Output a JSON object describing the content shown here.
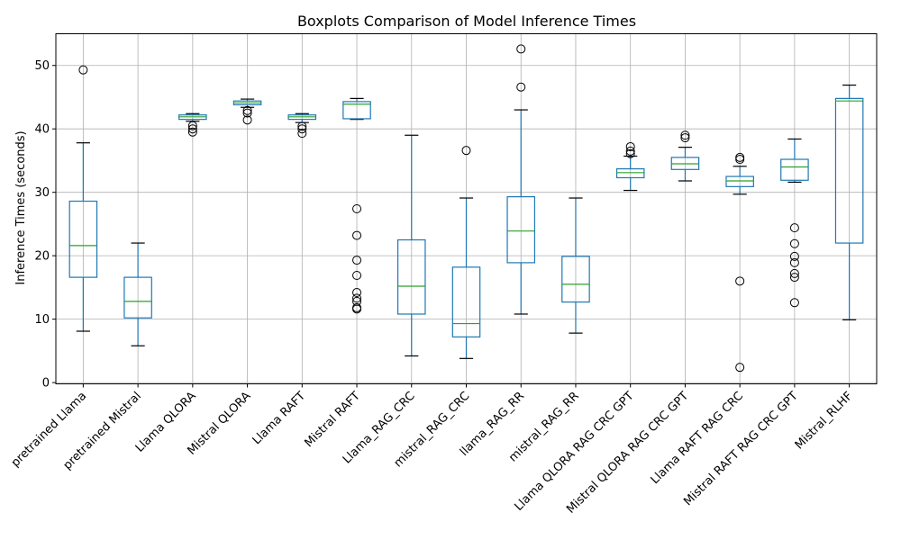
{
  "chart_data": {
    "type": "boxplot",
    "title": "Boxplots Comparison of Model Inference Times",
    "xlabel": "",
    "ylabel": "Inference Times (seconds)",
    "ylim": [
      -0.2,
      55
    ],
    "yticks": [
      0,
      10,
      20,
      30,
      40,
      50
    ],
    "grid": true,
    "colors": {
      "box": "#1f77b4",
      "median": "#2ca02c",
      "grid": "#b0b0b0",
      "axis": "#000000"
    },
    "categories": [
      "pretrained Llama",
      "pretrained Mistral",
      "Llama QLORA",
      "Mistral QLORA",
      "Llama RAFT",
      "Mistral RAFT",
      "Llama_RAG_CRC",
      "mistral_RAG_CRC",
      "llama_RAG_RR",
      "mistral_RAG_RR",
      "Llama QLORA RAG CRC GPT",
      "Mistral QLORA RAG CRC GPT",
      "Llama RAFT RAG CRC",
      "Mistral RAFT RAG CRC GPT",
      "Mistral_RLHF"
    ],
    "boxes": [
      {
        "whislo": 8.1,
        "q1": 16.6,
        "med": 21.6,
        "q3": 28.6,
        "whishi": 37.8,
        "fliers": [
          49.3
        ]
      },
      {
        "whislo": 5.8,
        "q1": 10.2,
        "med": 12.8,
        "q3": 16.6,
        "whishi": 22.0,
        "fliers": []
      },
      {
        "whislo": 41.2,
        "q1": 41.5,
        "med": 41.9,
        "q3": 42.2,
        "whishi": 42.4,
        "fliers": [
          40.5,
          40.0,
          39.5
        ]
      },
      {
        "whislo": 43.4,
        "q1": 43.8,
        "med": 44.1,
        "q3": 44.4,
        "whishi": 44.7,
        "fliers": [
          42.9,
          42.5,
          41.4
        ]
      },
      {
        "whislo": 41.0,
        "q1": 41.5,
        "med": 41.9,
        "q3": 42.2,
        "whishi": 42.4,
        "fliers": [
          40.4,
          40.0,
          39.3
        ]
      },
      {
        "whislo": 41.5,
        "q1": 41.6,
        "med": 43.9,
        "q3": 44.3,
        "whishi": 44.8,
        "fliers": [
          27.4,
          23.2,
          19.3,
          16.9,
          14.2,
          13.3,
          12.8,
          11.8,
          11.6
        ]
      },
      {
        "whislo": 4.2,
        "q1": 10.8,
        "med": 15.2,
        "q3": 22.5,
        "whishi": 39.0,
        "fliers": []
      },
      {
        "whislo": 3.8,
        "q1": 7.2,
        "med": 9.3,
        "q3": 18.2,
        "whishi": 29.1,
        "fliers": [
          36.6
        ]
      },
      {
        "whislo": 10.8,
        "q1": 18.9,
        "med": 23.9,
        "q3": 29.3,
        "whishi": 43.0,
        "fliers": [
          52.6,
          46.6
        ]
      },
      {
        "whislo": 7.8,
        "q1": 12.7,
        "med": 15.5,
        "q3": 19.9,
        "whishi": 29.1,
        "fliers": []
      },
      {
        "whislo": 30.3,
        "q1": 32.3,
        "med": 33.1,
        "q3": 33.7,
        "whishi": 35.7,
        "fliers": [
          37.2,
          36.5,
          36.1
        ]
      },
      {
        "whislo": 31.8,
        "q1": 33.6,
        "med": 34.5,
        "q3": 35.5,
        "whishi": 37.1,
        "fliers": [
          39.0,
          38.6
        ]
      },
      {
        "whislo": 29.7,
        "q1": 30.9,
        "med": 31.8,
        "q3": 32.5,
        "whishi": 34.1,
        "fliers": [
          35.5,
          35.2,
          16.0,
          2.4
        ]
      },
      {
        "whislo": 31.6,
        "q1": 31.9,
        "med": 34.0,
        "q3": 35.2,
        "whishi": 38.4,
        "fliers": [
          24.4,
          21.9,
          19.9,
          18.9,
          17.2,
          16.6,
          12.6
        ]
      },
      {
        "whislo": 9.9,
        "q1": 22.0,
        "med": 44.4,
        "q3": 44.8,
        "whishi": 46.9,
        "fliers": []
      }
    ]
  }
}
